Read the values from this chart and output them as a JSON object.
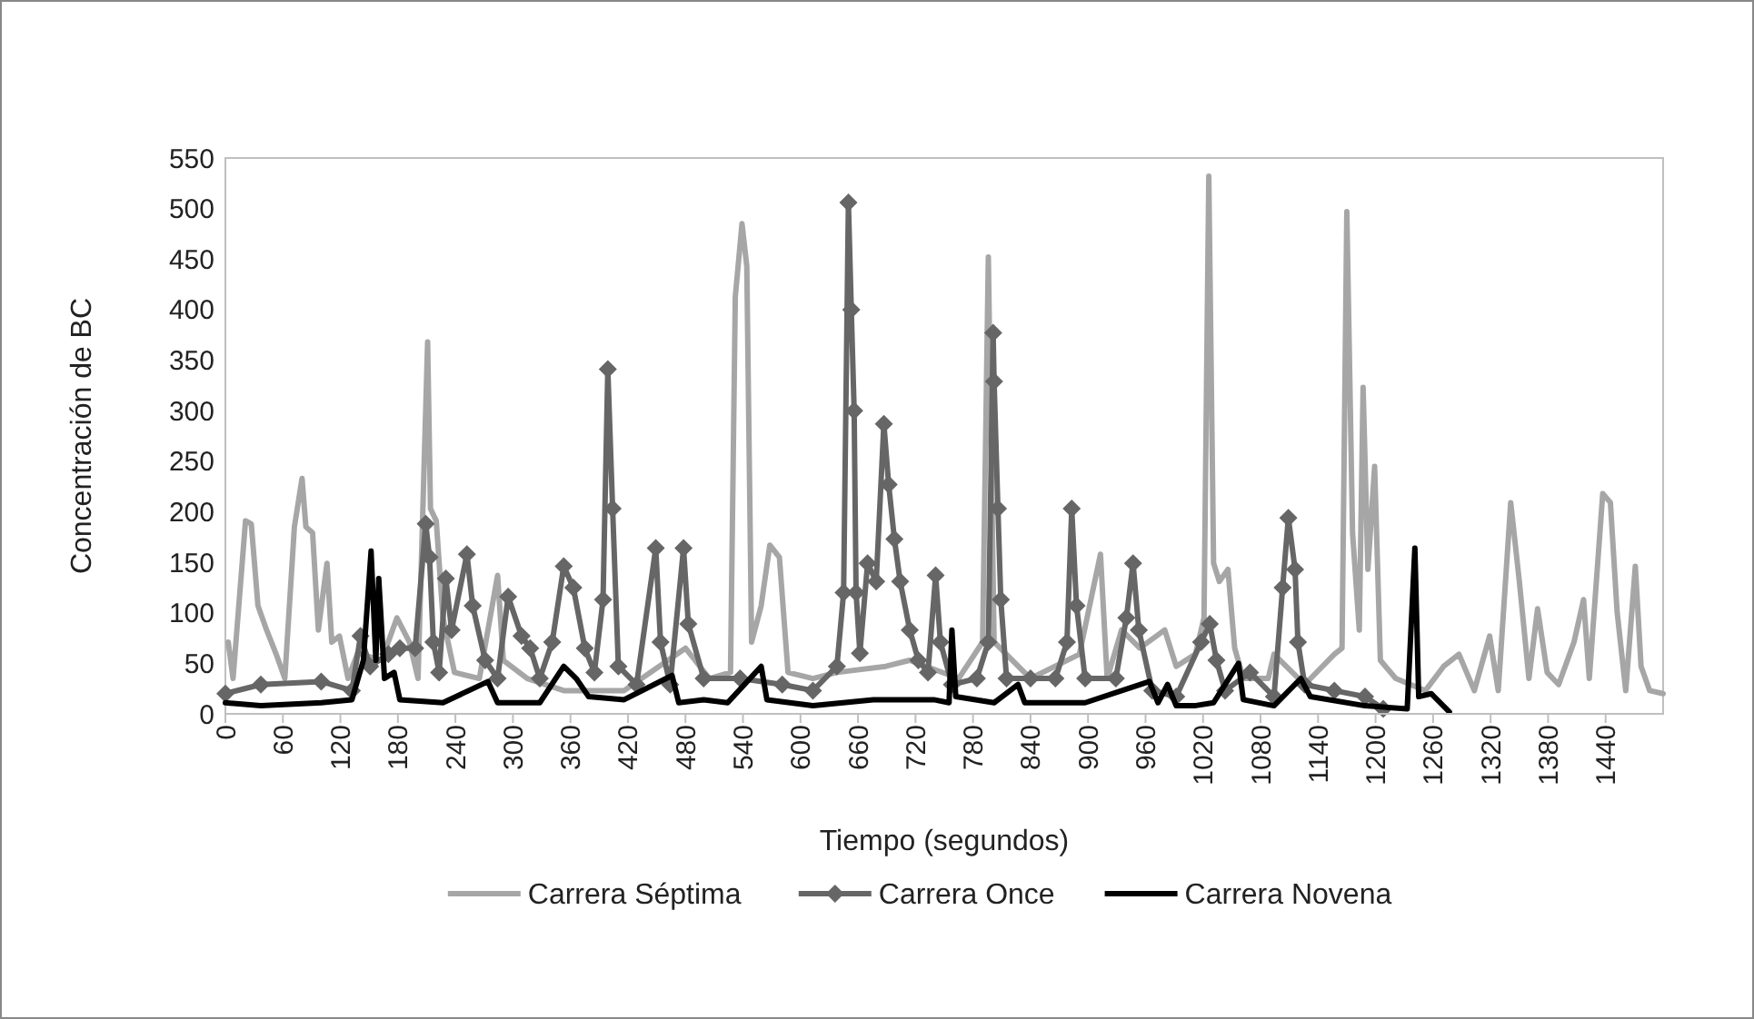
{
  "chart_data": {
    "type": "line",
    "xlabel": "Tiempo  (segundos)",
    "ylabel": "Concentración de BC",
    "xlim": [
      0,
      1500
    ],
    "xticks": [
      0,
      60,
      120,
      180,
      240,
      300,
      360,
      420,
      480,
      540,
      600,
      660,
      720,
      780,
      840,
      900,
      960,
      1020,
      1080,
      1140,
      1200,
      1260,
      1320,
      1380,
      1440
    ],
    "ylim": [
      0,
      550
    ],
    "yticks": [
      0,
      50,
      100,
      150,
      200,
      250,
      300,
      350,
      400,
      450,
      500,
      550
    ],
    "grid": false,
    "legend": "bottom",
    "line_style": "solid",
    "series": [
      {
        "name": "Carrera Séptima",
        "color": "#a6a6a6",
        "marker": "none",
        "x": [
          3,
          8,
          21,
          27,
          34,
          43,
          53,
          62,
          72,
          80,
          84,
          91,
          97,
          106,
          111,
          119,
          128,
          138,
          163,
          179,
          192,
          201,
          211,
          214,
          220,
          227,
          239,
          265,
          284,
          290,
          315,
          353,
          416,
          480,
          505,
          527,
          532,
          539,
          544,
          549,
          559,
          568,
          578,
          587,
          613,
          638,
          689,
          714,
          765,
          790,
          796,
          802,
          840,
          891,
          913,
          920,
          935,
          954,
          980,
          992,
          1012,
          1021,
          1026,
          1031,
          1037,
          1046,
          1053,
          1062,
          1088,
          1094,
          1126,
          1157,
          1165,
          1170,
          1176,
          1183,
          1187,
          1192,
          1199,
          1205,
          1221,
          1252,
          1271,
          1287,
          1303,
          1319,
          1328,
          1341,
          1350,
          1360,
          1369,
          1379,
          1391,
          1407,
          1417,
          1423,
          1437,
          1445,
          1452,
          1461,
          1471,
          1477,
          1486,
          1500
        ],
        "values": [
          71,
          35,
          191,
          188,
          107,
          83,
          59,
          35,
          185,
          233,
          185,
          179,
          83,
          149,
          71,
          77,
          35,
          60,
          53,
          95,
          71,
          35,
          368,
          203,
          191,
          95,
          41,
          35,
          137,
          53,
          35,
          23,
          23,
          65,
          35,
          41,
          413,
          485,
          443,
          71,
          107,
          167,
          155,
          41,
          35,
          41,
          47,
          53,
          35,
          71,
          452,
          71,
          35,
          59,
          158,
          35,
          83,
          65,
          83,
          47,
          59,
          95,
          532,
          149,
          131,
          143,
          65,
          35,
          35,
          59,
          29,
          59,
          65,
          497,
          179,
          83,
          323,
          143,
          245,
          53,
          35,
          23,
          47,
          59,
          23,
          77,
          23,
          209,
          131,
          35,
          104,
          41,
          29,
          71,
          113,
          35,
          218,
          209,
          101,
          23,
          146,
          47,
          23,
          20
        ]
      },
      {
        "name": "Carrera Once",
        "color": "#666666",
        "marker": "diamond",
        "x": [
          0,
          37,
          100,
          132,
          141,
          151,
          170,
          182,
          198,
          209,
          213,
          217,
          223,
          230,
          236,
          252,
          258,
          271,
          284,
          295,
          309,
          318,
          328,
          341,
          353,
          363,
          375,
          385,
          394,
          399,
          404,
          410,
          429,
          449,
          454,
          464,
          478,
          483,
          499,
          537,
          581,
          613,
          638,
          645,
          650,
          653,
          656,
          658,
          662,
          670,
          679,
          687,
          692,
          698,
          704,
          714,
          723,
          733,
          741,
          746,
          758,
          784,
          796,
          801,
          802,
          806,
          809,
          815,
          840,
          866,
          878,
          883,
          888,
          897,
          929,
          940,
          947,
          953,
          967,
          992,
          1018,
          1027,
          1034,
          1043,
          1069,
          1094,
          1103,
          1109,
          1116,
          1119,
          1126,
          1157,
          1189,
          1208
        ],
        "values": [
          20,
          29,
          32,
          23,
          77,
          47,
          59,
          65,
          65,
          188,
          155,
          71,
          41,
          134,
          83,
          158,
          107,
          53,
          35,
          116,
          77,
          65,
          35,
          71,
          146,
          125,
          65,
          41,
          113,
          341,
          203,
          47,
          29,
          164,
          71,
          29,
          164,
          89,
          35,
          35,
          29,
          23,
          47,
          120,
          506,
          400,
          300,
          120,
          60,
          149,
          131,
          287,
          227,
          173,
          131,
          83,
          53,
          41,
          137,
          71,
          29,
          35,
          71,
          377,
          329,
          203,
          113,
          35,
          35,
          35,
          71,
          203,
          107,
          35,
          35,
          95,
          149,
          83,
          23,
          17,
          71,
          89,
          53,
          23,
          41,
          17,
          125,
          194,
          143,
          71,
          29,
          23,
          17,
          5
        ]
      },
      {
        "name": "Carrera Novena",
        "color": "#000000",
        "marker": "none",
        "x": [
          0,
          37,
          100,
          132,
          144,
          152,
          157,
          160,
          166,
          176,
          182,
          227,
          274,
          284,
          328,
          353,
          366,
          379,
          416,
          466,
          473,
          499,
          524,
          559,
          565,
          613,
          676,
          739,
          755,
          758,
          762,
          802,
          827,
          834,
          897,
          964,
          973,
          983,
          992,
          1011,
          1031,
          1057,
          1062,
          1094,
          1122,
          1132,
          1189,
          1233,
          1241,
          1245,
          1258,
          1277
        ],
        "values": [
          11,
          8,
          11,
          14,
          53,
          161,
          53,
          134,
          35,
          41,
          14,
          11,
          32,
          11,
          11,
          47,
          35,
          17,
          14,
          38,
          11,
          14,
          11,
          47,
          14,
          8,
          14,
          14,
          11,
          83,
          17,
          11,
          29,
          11,
          11,
          32,
          11,
          29,
          8,
          8,
          11,
          50,
          14,
          8,
          35,
          17,
          8,
          5,
          164,
          17,
          20,
          2
        ]
      }
    ]
  }
}
